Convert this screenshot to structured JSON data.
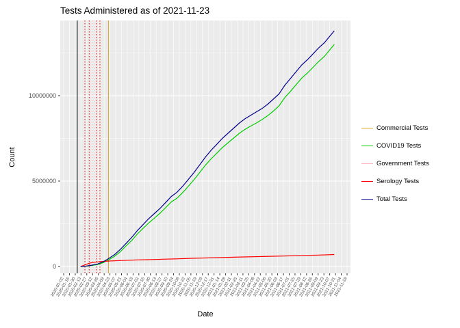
{
  "chart_data": {
    "type": "line",
    "title": "Tests Administered as of 2021-11-23",
    "xlabel": "Date",
    "ylabel": "Count",
    "ylim": [
      0,
      14400000
    ],
    "panel_background": "#EBEBEB",
    "grid_color": "#FFFFFF",
    "legend_position": "right",
    "y_ticks": [
      {
        "value": 0,
        "label": "0"
      },
      {
        "value": 5000000,
        "label": "5000000"
      },
      {
        "value": 10000000,
        "label": "10000000"
      }
    ],
    "x_tick_labels": [
      "2020-01-02",
      "2020-01-16",
      "2020-01-30",
      "2020-02-13",
      "2020-02-27",
      "2020-03-12",
      "2020-03-26",
      "2020-04-09",
      "2020-04-23",
      "2020-05-07",
      "2020-05-21",
      "2020-06-04",
      "2020-06-18",
      "2020-07-02",
      "2020-07-16",
      "2020-07-30",
      "2020-08-13",
      "2020-08-27",
      "2020-09-10",
      "2020-09-24",
      "2020-10-08",
      "2020-10-22",
      "2020-11-05",
      "2020-11-19",
      "2020-12-03",
      "2020-12-17",
      "2020-12-31",
      "2021-01-14",
      "2021-01-28",
      "2021-02-11",
      "2021-02-25",
      "2021-03-11",
      "2021-03-25",
      "2021-04-08",
      "2021-04-22",
      "2021-05-06",
      "2021-05-20",
      "2021-06-03",
      "2021-06-17",
      "2021-07-01",
      "2021-07-15",
      "2021-07-29",
      "2021-08-12",
      "2021-08-26",
      "2021-09-09",
      "2021-09-23",
      "2021-10-07",
      "2021-10-21",
      "2021-11-04",
      "2021-11-18"
    ],
    "series": [
      {
        "name": "COVID19 Tests",
        "color": "#00CC00",
        "points": [
          [
            0.06,
            0
          ],
          [
            0.08,
            20000
          ],
          [
            0.1,
            60000
          ],
          [
            0.12,
            120000
          ],
          [
            0.14,
            230000
          ],
          [
            0.16,
            400000
          ],
          [
            0.18,
            600000
          ],
          [
            0.2,
            870000
          ],
          [
            0.22,
            1200000
          ],
          [
            0.24,
            1520000
          ],
          [
            0.26,
            1900000
          ],
          [
            0.28,
            2230000
          ],
          [
            0.3,
            2550000
          ],
          [
            0.32,
            2830000
          ],
          [
            0.34,
            3120000
          ],
          [
            0.36,
            3450000
          ],
          [
            0.38,
            3780000
          ],
          [
            0.4,
            4000000
          ],
          [
            0.42,
            4330000
          ],
          [
            0.44,
            4700000
          ],
          [
            0.46,
            5080000
          ],
          [
            0.48,
            5500000
          ],
          [
            0.5,
            5930000
          ],
          [
            0.52,
            6300000
          ],
          [
            0.54,
            6630000
          ],
          [
            0.56,
            6960000
          ],
          [
            0.58,
            7240000
          ],
          [
            0.6,
            7520000
          ],
          [
            0.62,
            7800000
          ],
          [
            0.64,
            8030000
          ],
          [
            0.66,
            8220000
          ],
          [
            0.68,
            8400000
          ],
          [
            0.7,
            8600000
          ],
          [
            0.72,
            8830000
          ],
          [
            0.74,
            9100000
          ],
          [
            0.76,
            9400000
          ],
          [
            0.78,
            9880000
          ],
          [
            0.8,
            10250000
          ],
          [
            0.82,
            10640000
          ],
          [
            0.84,
            11030000
          ],
          [
            0.86,
            11320000
          ],
          [
            0.88,
            11660000
          ],
          [
            0.9,
            12000000
          ],
          [
            0.92,
            12300000
          ],
          [
            0.94,
            12700000
          ],
          [
            0.955,
            13000000
          ]
        ]
      },
      {
        "name": "Serology Tests",
        "color": "#FF0000",
        "points": [
          [
            0.06,
            0
          ],
          [
            0.07,
            60000
          ],
          [
            0.08,
            130000
          ],
          [
            0.09,
            190000
          ],
          [
            0.1,
            230000
          ],
          [
            0.12,
            270000
          ],
          [
            0.14,
            300000
          ],
          [
            0.16,
            320000
          ],
          [
            0.2,
            350000
          ],
          [
            0.25,
            380000
          ],
          [
            0.3,
            400000
          ],
          [
            0.35,
            430000
          ],
          [
            0.4,
            450000
          ],
          [
            0.45,
            480000
          ],
          [
            0.5,
            500000
          ],
          [
            0.55,
            520000
          ],
          [
            0.6,
            545000
          ],
          [
            0.65,
            565000
          ],
          [
            0.7,
            585000
          ],
          [
            0.75,
            605000
          ],
          [
            0.8,
            625000
          ],
          [
            0.85,
            650000
          ],
          [
            0.9,
            670000
          ],
          [
            0.955,
            700000
          ]
        ]
      },
      {
        "name": "Total Tests",
        "color": "#00008B",
        "points": [
          [
            0.06,
            0
          ],
          [
            0.08,
            30000
          ],
          [
            0.1,
            80000
          ],
          [
            0.12,
            150000
          ],
          [
            0.14,
            280000
          ],
          [
            0.16,
            480000
          ],
          [
            0.18,
            700000
          ],
          [
            0.2,
            1000000
          ],
          [
            0.22,
            1350000
          ],
          [
            0.24,
            1700000
          ],
          [
            0.26,
            2100000
          ],
          [
            0.28,
            2450000
          ],
          [
            0.3,
            2800000
          ],
          [
            0.32,
            3100000
          ],
          [
            0.34,
            3400000
          ],
          [
            0.36,
            3750000
          ],
          [
            0.38,
            4100000
          ],
          [
            0.4,
            4350000
          ],
          [
            0.42,
            4700000
          ],
          [
            0.44,
            5100000
          ],
          [
            0.46,
            5500000
          ],
          [
            0.48,
            5950000
          ],
          [
            0.5,
            6400000
          ],
          [
            0.52,
            6800000
          ],
          [
            0.54,
            7150000
          ],
          [
            0.56,
            7500000
          ],
          [
            0.58,
            7800000
          ],
          [
            0.6,
            8100000
          ],
          [
            0.62,
            8400000
          ],
          [
            0.64,
            8650000
          ],
          [
            0.66,
            8850000
          ],
          [
            0.68,
            9050000
          ],
          [
            0.7,
            9250000
          ],
          [
            0.72,
            9500000
          ],
          [
            0.74,
            9800000
          ],
          [
            0.76,
            10100000
          ],
          [
            0.78,
            10600000
          ],
          [
            0.8,
            11000000
          ],
          [
            0.82,
            11400000
          ],
          [
            0.84,
            11800000
          ],
          [
            0.86,
            12100000
          ],
          [
            0.88,
            12450000
          ],
          [
            0.9,
            12800000
          ],
          [
            0.92,
            13100000
          ],
          [
            0.94,
            13500000
          ],
          [
            0.955,
            13800000
          ]
        ]
      }
    ],
    "vlines": [
      {
        "color": "#000000",
        "dash": "solid",
        "x": 0.048
      },
      {
        "color": "#FF0000",
        "dash": "dotted",
        "x": 0.075
      },
      {
        "color": "#FF0000",
        "dash": "dotted",
        "x": 0.09
      },
      {
        "color": "#FFB6C1",
        "dash": "dotted",
        "x": 0.102
      },
      {
        "color": "#FF0000",
        "dash": "dotted",
        "x": 0.115
      },
      {
        "color": "#FF0000",
        "dash": "dotted",
        "x": 0.128
      },
      {
        "color": "#DAA520",
        "dash": "solid",
        "x": 0.158
      }
    ],
    "legend": {
      "items": [
        {
          "label": "Commercial Tests",
          "color": "#DAA520"
        },
        {
          "label": "COVID19 Tests",
          "color": "#00CC00"
        },
        {
          "label": "Government Tests",
          "color": "#FFB6C1"
        },
        {
          "label": "Serology Tests",
          "color": "#FF0000"
        },
        {
          "label": "Total Tests",
          "color": "#00008B"
        }
      ]
    }
  }
}
